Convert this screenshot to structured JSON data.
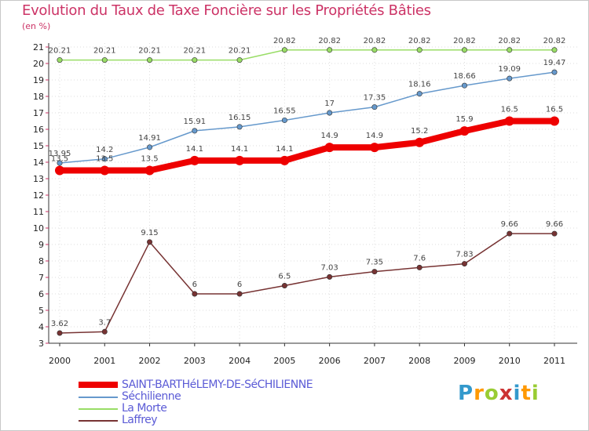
{
  "chart_data": {
    "type": "line",
    "title": "Evolution du Taux de Taxe Foncière sur les Propriétés Bâties",
    "ylabel": "(en %)",
    "xlabel": "",
    "ylim": [
      3,
      21
    ],
    "yticks": [
      "3",
      "4",
      "5",
      "6",
      "7",
      "8",
      "9",
      "10",
      "11",
      "12",
      "13",
      "14",
      "15",
      "16",
      "17",
      "18",
      "19",
      "20",
      "21"
    ],
    "categories": [
      "2000",
      "2001",
      "2002",
      "2003",
      "2004",
      "2005",
      "2006",
      "2007",
      "2008",
      "2009",
      "2010",
      "2011"
    ],
    "series": [
      {
        "name": "SAINT-BARTHéLEMY-DE-SéCHILIENNE",
        "color": "#ee0000",
        "values": [
          13.5,
          13.5,
          13.5,
          14.1,
          14.1,
          14.1,
          14.9,
          14.9,
          15.2,
          15.9,
          16.5,
          16.5
        ],
        "labels": [
          "13.5",
          "13.5",
          "13.5",
          "14.1",
          "14.1",
          "14.1",
          "14.9",
          "14.9",
          "15.2",
          "15.9",
          "16.5",
          "16.5"
        ]
      },
      {
        "name": "Séchilienne",
        "color": "#6699cc",
        "values": [
          13.95,
          14.2,
          14.91,
          15.91,
          16.15,
          16.55,
          17,
          17.35,
          18.16,
          18.66,
          19.09,
          19.47
        ],
        "labels": [
          "13.95",
          "14.2",
          "14.91",
          "15.91",
          "16.15",
          "16.55",
          "17",
          "17.35",
          "18.16",
          "18.66",
          "19.09",
          "19.47"
        ]
      },
      {
        "name": "La Morte",
        "color": "#99dd66",
        "values": [
          20.21,
          20.21,
          20.21,
          20.21,
          20.21,
          20.82,
          20.82,
          20.82,
          20.82,
          20.82,
          20.82,
          20.82
        ],
        "labels": [
          "20.21",
          "20.21",
          "20.21",
          "20.21",
          "20.21",
          "20.82",
          "20.82",
          "20.82",
          "20.82",
          "20.82",
          "20.82",
          "20.82"
        ]
      },
      {
        "name": "Laffrey",
        "color": "#773333",
        "values": [
          3.62,
          3.7,
          9.15,
          6,
          6,
          6.5,
          7.03,
          7.35,
          7.6,
          7.83,
          9.66,
          9.66
        ],
        "labels": [
          "3.62",
          "3.7",
          "9.15",
          "6",
          "6",
          "6.5",
          "7.03",
          "7.35",
          "7.6",
          "7.83",
          "9.66",
          "9.66"
        ]
      }
    ],
    "legend": [
      "SAINT-BARTHéLEMY-DE-SéCHILIENNE",
      "Séchilienne",
      "La Morte",
      "Laffrey"
    ],
    "logo_text": "Proxiti"
  }
}
